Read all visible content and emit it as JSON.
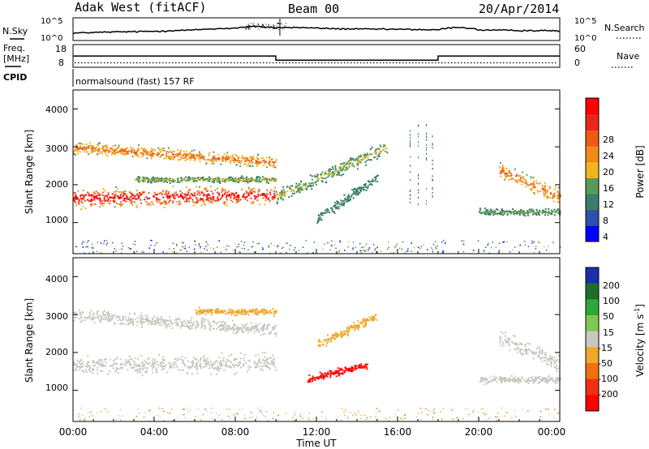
{
  "header": {
    "title": "Adak West (fitACF)",
    "beam": "Beam 00",
    "date": "20/Apr/2014"
  },
  "sky_panel": {
    "left_label": "N.Sky",
    "right_label": "N.Search",
    "left_ticks": [
      "10^5",
      "10^0"
    ],
    "right_ticks": [
      "10^5",
      "10^0"
    ]
  },
  "freq_panel": {
    "left_label_line1": "Freq.",
    "left_label_line2": "[MHz]",
    "left_ticks": [
      "18",
      "8"
    ],
    "right_label": "Nave",
    "right_ticks": [
      "60",
      "0"
    ],
    "cpid_label": "CPID",
    "cpid_text": "normalsound (fast) 157 RF"
  },
  "power_panel": {
    "ylabel": "Slant Range [km]",
    "y_ticks": [
      "1000",
      "2000",
      "3000",
      "4000"
    ],
    "colorbar_label": "Power [dB]",
    "colorbar_ticks": [
      "4",
      "8",
      "12",
      "16",
      "20",
      "24",
      "28"
    ]
  },
  "velocity_panel": {
    "ylabel": "Slant Range [km]",
    "y_ticks": [
      "1000",
      "2000",
      "3000",
      "4000"
    ],
    "colorbar_label": "Velocity [m s",
    "colorbar_label_sup": "-1",
    "colorbar_label_end": "]",
    "colorbar_ticks": [
      "200",
      "100",
      "50",
      "15",
      "-15",
      "-50",
      "-100",
      "-200"
    ]
  },
  "x_axis": {
    "label": "Time UT",
    "ticks": [
      "00:00",
      "04:00",
      "08:00",
      "12:00",
      "16:00",
      "20:00",
      "00:00"
    ]
  },
  "colors": {
    "power_scale": [
      "#0000ff",
      "#2f4fb0",
      "#3a7d6a",
      "#5a9a58",
      "#f2b51e",
      "#f28a1a",
      "#f05a14",
      "#e8281a",
      "#ff0000"
    ],
    "velocity_scale": [
      "#1c2ea8",
      "#1e6e2a",
      "#2fa838",
      "#7fc850",
      "#c8c8c0",
      "#f0a828",
      "#f07010",
      "#f03010",
      "#ff0000"
    ]
  },
  "chart_data": [
    {
      "type": "line",
      "title": "N.Sky / N.Search",
      "x_range_hours": [
        0,
        24
      ],
      "yscale": "log",
      "series": [
        {
          "name": "N.Sky",
          "x": [
            0,
            2,
            4,
            6,
            8,
            9,
            10,
            11,
            12,
            13,
            14,
            16,
            17,
            18,
            19,
            20,
            22,
            24
          ],
          "values": [
            30,
            60,
            90,
            200,
            600,
            1500,
            800,
            900,
            600,
            400,
            350,
            300,
            250,
            200,
            1000,
            200,
            150,
            120
          ]
        }
      ]
    },
    {
      "type": "line",
      "title": "Freq [MHz] / Nave",
      "x_range_hours": [
        0,
        24
      ],
      "series": [
        {
          "name": "Freq.",
          "x": [
            0,
            10,
            10,
            18,
            18,
            24
          ],
          "values": [
            13,
            13,
            10,
            10,
            13,
            13
          ]
        },
        {
          "name": "Nave",
          "x": [
            0,
            24
          ],
          "values": [
            8,
            8
          ]
        }
      ]
    },
    {
      "type": "heatmap",
      "title": "Power [dB]",
      "xlabel": "Time UT",
      "ylabel": "Slant Range [km]",
      "x_range_hours": [
        0,
        24
      ],
      "ylim": [
        180,
        4500
      ],
      "colorbar_range": [
        0,
        30
      ],
      "bands": [
        {
          "t_start": 0.0,
          "t_end": 10.0,
          "range_start": 3000,
          "range_end": 2600,
          "width_km": 450,
          "peak_db": 22
        },
        {
          "t_start": 0.0,
          "t_end": 10.0,
          "range_start": 1650,
          "range_end": 1750,
          "width_km": 650,
          "peak_db": 30
        },
        {
          "t_start": 3.0,
          "t_end": 10.0,
          "range_start": 2150,
          "range_end": 2150,
          "width_km": 200,
          "peak_db": 14
        },
        {
          "t_start": 10.0,
          "t_end": 15.5,
          "range_start": 1700,
          "range_end": 3000,
          "width_km": 500,
          "peak_db": 14
        },
        {
          "t_start": 12.0,
          "t_end": 15.0,
          "range_start": 1100,
          "range_end": 2200,
          "width_km": 400,
          "peak_db": 10
        },
        {
          "t_start": 20.0,
          "t_end": 24.0,
          "range_start": 1300,
          "range_end": 1300,
          "width_km": 250,
          "peak_db": 12
        },
        {
          "t_start": 21.0,
          "t_end": 24.0,
          "range_start": 2400,
          "range_end": 1700,
          "width_km": 600,
          "peak_db": 22
        }
      ]
    },
    {
      "type": "heatmap",
      "title": "Velocity [m s-1]",
      "xlabel": "Time UT",
      "ylabel": "Slant Range [km]",
      "x_range_hours": [
        0,
        24
      ],
      "ylim": [
        180,
        4500
      ],
      "colorbar_range": [
        -200,
        200
      ],
      "bands": [
        {
          "t_start": 0.0,
          "t_end": 10.0,
          "range_start": 3000,
          "range_end": 2600,
          "width_km": 450,
          "velocity": 0
        },
        {
          "t_start": 0.0,
          "t_end": 10.0,
          "range_start": 1650,
          "range_end": 1750,
          "width_km": 650,
          "velocity": 0
        },
        {
          "t_start": 6.0,
          "t_end": 10.0,
          "range_start": 3100,
          "range_end": 3100,
          "width_km": 250,
          "velocity": -60
        },
        {
          "t_start": 11.5,
          "t_end": 14.5,
          "range_start": 1300,
          "range_end": 1700,
          "width_km": 250,
          "velocity": -200
        },
        {
          "t_start": 12.0,
          "t_end": 15.0,
          "range_start": 2200,
          "range_end": 3000,
          "width_km": 350,
          "velocity": -60
        },
        {
          "t_start": 20.0,
          "t_end": 24.0,
          "range_start": 1300,
          "range_end": 1300,
          "width_km": 250,
          "velocity": 0
        },
        {
          "t_start": 21.0,
          "t_end": 24.0,
          "range_start": 2400,
          "range_end": 1700,
          "width_km": 600,
          "velocity": 0
        }
      ]
    }
  ]
}
